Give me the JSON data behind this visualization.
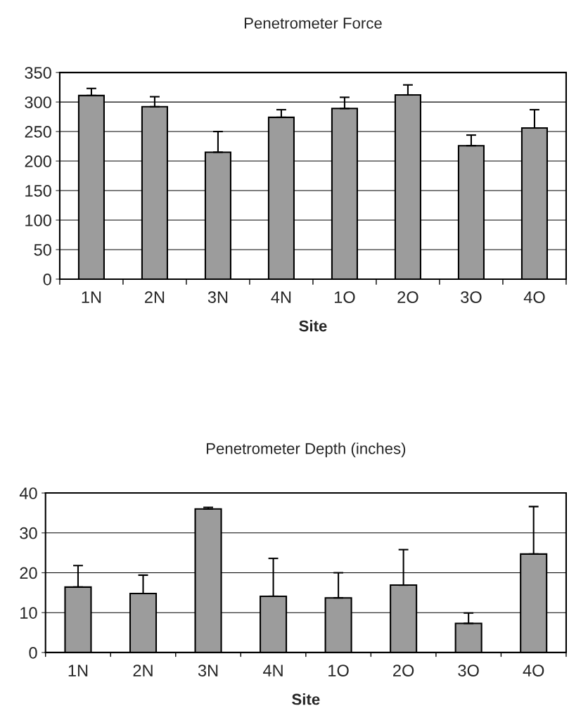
{
  "chart_data": [
    {
      "type": "bar",
      "title": "Penetrometer Force",
      "xlabel": "Site",
      "categories": [
        "1N",
        "2N",
        "3N",
        "4N",
        "1O",
        "2O",
        "3O",
        "4O"
      ],
      "values": [
        311,
        292,
        215,
        274,
        289,
        312,
        226,
        256
      ],
      "errors": [
        [
          311,
          323
        ],
        [
          292,
          309
        ],
        [
          215,
          250
        ],
        [
          274,
          287
        ],
        [
          289,
          308
        ],
        [
          312,
          329
        ],
        [
          226,
          244
        ],
        [
          256,
          287
        ]
      ],
      "color": "#9c9c9c",
      "ylim": [
        0,
        350
      ],
      "yticks": [
        0,
        50,
        100,
        150,
        200,
        250,
        300,
        350
      ],
      "grid": "y"
    },
    {
      "type": "bar",
      "title": "Penetrometer Depth (inches)",
      "xlabel": "Site",
      "categories": [
        "1N",
        "2N",
        "3N",
        "4N",
        "1O",
        "2O",
        "3O",
        "4O"
      ],
      "values": [
        16.4,
        14.8,
        36.0,
        14.1,
        13.7,
        16.9,
        7.3,
        24.7
      ],
      "errors": [
        [
          16.4,
          21.8
        ],
        [
          14.8,
          19.4
        ],
        [
          36.0,
          36.4
        ],
        [
          14.1,
          23.6
        ],
        [
          13.7,
          20.0
        ],
        [
          16.9,
          25.8
        ],
        [
          7.3,
          9.9
        ],
        [
          24.7,
          36.6
        ]
      ],
      "color": "#9c9c9c",
      "ylim": [
        0,
        40
      ],
      "yticks": [
        0,
        10,
        20,
        30,
        40
      ],
      "grid": "y"
    }
  ]
}
